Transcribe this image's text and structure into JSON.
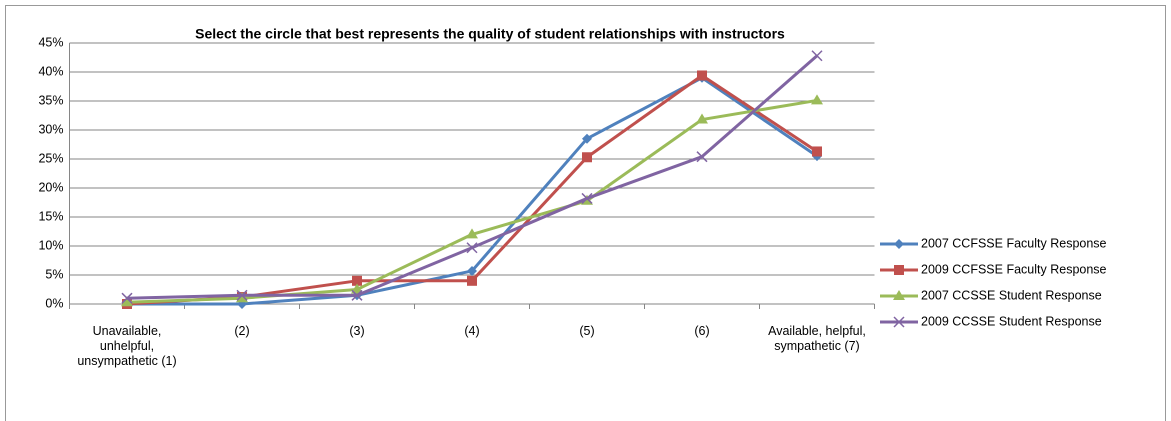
{
  "chart_data": {
    "type": "line",
    "title": "Select the circle that best represents the quality of student relationships with  instructors",
    "categories": [
      "Unavailable, unhelpful, unsympathetic (1)",
      "(2)",
      "(3)",
      "(4)",
      "(5)",
      "(6)",
      "Available, helpful, sympathetic (7)"
    ],
    "series": [
      {
        "name": "2007 CCFSSE Faculty Response",
        "color": "#4F81BD",
        "marker": "diamond",
        "values": [
          0,
          0,
          1.5,
          5.7,
          28.5,
          39,
          25.5
        ]
      },
      {
        "name": "2009 CCFSSE Faculty Response",
        "color": "#C0504D",
        "marker": "square",
        "values": [
          0,
          1.2,
          4,
          4,
          25.3,
          39.4,
          26.3
        ]
      },
      {
        "name": "2007 CCSSE Student Response",
        "color": "#9BBB59",
        "marker": "triangle",
        "values": [
          0.3,
          1,
          2.5,
          12,
          17.8,
          31.8,
          35.1
        ]
      },
      {
        "name": "2009 CCSSE Student Response",
        "color": "#8064A2",
        "marker": "x",
        "values": [
          1,
          1.5,
          1.5,
          9.7,
          18.2,
          25.4,
          42.8
        ]
      }
    ],
    "ylim": [
      0,
      45
    ],
    "yticks": [
      {
        "value": 0,
        "label": "0%"
      },
      {
        "value": 5,
        "label": "5%"
      },
      {
        "value": 10,
        "label": "10%"
      },
      {
        "value": 15,
        "label": "15%"
      },
      {
        "value": 20,
        "label": "20%"
      },
      {
        "value": 25,
        "label": "25%"
      },
      {
        "value": 30,
        "label": "30%"
      },
      {
        "value": 35,
        "label": "35%"
      },
      {
        "value": 40,
        "label": "40%"
      },
      {
        "value": 45,
        "label": "45%"
      }
    ],
    "grid": true,
    "legend": "right"
  }
}
